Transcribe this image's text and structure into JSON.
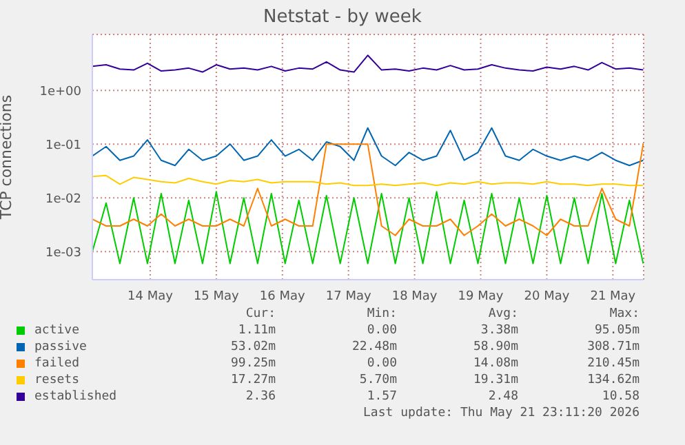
{
  "chart_data": {
    "type": "line",
    "title": "Netstat - by week",
    "ylabel": "TCP connections",
    "log": "y",
    "grid": true,
    "legend": "bottom",
    "marker": "none",
    "line_style": "solid",
    "xlim": [
      "2026-05-13T15:00",
      "2026-05-21T23:10"
    ],
    "xticks": [
      {
        "value": "2026-05-14T12:00",
        "label": "14 May"
      },
      {
        "value": "2026-05-15T12:00",
        "label": "15 May"
      },
      {
        "value": "2026-05-16T12:00",
        "label": "16 May"
      },
      {
        "value": "2026-05-17T12:00",
        "label": "17 May"
      },
      {
        "value": "2026-05-18T12:00",
        "label": "18 May"
      },
      {
        "value": "2026-05-19T12:00",
        "label": "19 May"
      },
      {
        "value": "2026-05-20T12:00",
        "label": "20 May"
      },
      {
        "value": "2026-05-21T12:00",
        "label": "21 May"
      }
    ],
    "ylim": [
      0.0003,
      11
    ],
    "yticks": [
      {
        "value": 0.001,
        "label": "1e-03"
      },
      {
        "value": 0.01,
        "label": "1e-02"
      },
      {
        "value": 0.1,
        "label": "1e-01"
      },
      {
        "value": 1,
        "label": "1e+00"
      }
    ],
    "x": [
      "2026-05-13T15:00",
      "2026-05-13T20:00",
      "2026-05-14T01:00",
      "2026-05-14T06:00",
      "2026-05-14T11:00",
      "2026-05-14T16:00",
      "2026-05-14T21:00",
      "2026-05-15T02:00",
      "2026-05-15T07:00",
      "2026-05-15T12:00",
      "2026-05-15T17:00",
      "2026-05-15T22:00",
      "2026-05-16T03:00",
      "2026-05-16T08:00",
      "2026-05-16T13:00",
      "2026-05-16T18:00",
      "2026-05-16T23:00",
      "2026-05-17T04:00",
      "2026-05-17T09:00",
      "2026-05-17T14:00",
      "2026-05-17T19:00",
      "2026-05-18T00:00",
      "2026-05-18T05:00",
      "2026-05-18T10:00",
      "2026-05-18T15:00",
      "2026-05-18T20:00",
      "2026-05-19T01:00",
      "2026-05-19T06:00",
      "2026-05-19T11:00",
      "2026-05-19T16:00",
      "2026-05-19T21:00",
      "2026-05-20T02:00",
      "2026-05-20T07:00",
      "2026-05-20T12:00",
      "2026-05-20T17:00",
      "2026-05-20T22:00",
      "2026-05-21T03:00",
      "2026-05-21T08:00",
      "2026-05-21T13:00",
      "2026-05-21T18:00",
      "2026-05-21T23:00"
    ],
    "series": [
      {
        "name": "active",
        "color": "#00cc00",
        "values": [
          0.001,
          0.008,
          0.0006,
          0.01,
          0.0006,
          0.012,
          0.0006,
          0.009,
          0.0006,
          0.013,
          0.0006,
          0.01,
          0.0006,
          0.012,
          0.0006,
          0.009,
          0.0006,
          0.011,
          0.0006,
          0.01,
          0.0006,
          0.012,
          0.0006,
          0.01,
          0.0006,
          0.013,
          0.0006,
          0.009,
          0.0006,
          0.012,
          0.0006,
          0.01,
          0.0006,
          0.011,
          0.0006,
          0.01,
          0.0006,
          0.012,
          0.0006,
          0.009,
          0.0006
        ]
      },
      {
        "name": "passive",
        "color": "#0066b3",
        "values": [
          0.06,
          0.09,
          0.05,
          0.06,
          0.12,
          0.05,
          0.04,
          0.08,
          0.05,
          0.06,
          0.1,
          0.05,
          0.06,
          0.12,
          0.06,
          0.08,
          0.05,
          0.11,
          0.09,
          0.05,
          0.2,
          0.06,
          0.04,
          0.07,
          0.05,
          0.06,
          0.18,
          0.05,
          0.07,
          0.2,
          0.06,
          0.05,
          0.08,
          0.06,
          0.05,
          0.06,
          0.05,
          0.07,
          0.05,
          0.04,
          0.05
        ]
      },
      {
        "name": "failed",
        "color": "#ff8000",
        "values": [
          0.004,
          0.003,
          0.003,
          0.004,
          0.003,
          0.005,
          0.003,
          0.004,
          0.003,
          0.003,
          0.004,
          0.003,
          0.015,
          0.003,
          0.004,
          0.003,
          0.003,
          0.1,
          0.1,
          0.1,
          0.1,
          0.003,
          0.002,
          0.004,
          0.003,
          0.003,
          0.004,
          0.002,
          0.003,
          0.005,
          0.003,
          0.004,
          0.003,
          0.002,
          0.004,
          0.003,
          0.003,
          0.015,
          0.004,
          0.003,
          0.1
        ]
      },
      {
        "name": "resets",
        "color": "#ffcc00",
        "values": [
          0.025,
          0.026,
          0.018,
          0.024,
          0.022,
          0.02,
          0.019,
          0.023,
          0.02,
          0.018,
          0.021,
          0.02,
          0.022,
          0.019,
          0.02,
          0.02,
          0.02,
          0.018,
          0.019,
          0.017,
          0.017,
          0.018,
          0.017,
          0.018,
          0.019,
          0.017,
          0.019,
          0.018,
          0.02,
          0.018,
          0.019,
          0.019,
          0.018,
          0.02,
          0.018,
          0.018,
          0.017,
          0.018,
          0.018,
          0.017,
          0.017
        ]
      },
      {
        "name": "established",
        "color": "#330099",
        "values": [
          2.8,
          3.0,
          2.5,
          2.4,
          3.2,
          2.3,
          2.4,
          2.6,
          2.2,
          3.0,
          2.5,
          2.6,
          2.4,
          2.8,
          2.3,
          2.6,
          2.5,
          3.4,
          2.4,
          2.2,
          4.5,
          2.4,
          2.5,
          2.3,
          2.6,
          2.4,
          2.9,
          2.4,
          2.5,
          3.0,
          2.6,
          2.4,
          2.3,
          2.7,
          2.5,
          2.8,
          2.4,
          3.3,
          2.5,
          2.6,
          2.4
        ]
      }
    ],
    "annotations": [
      "Cur:",
      "Min:",
      "Avg:",
      "Max:",
      "1.11m",
      "0.00",
      "3.38m",
      "95.05m",
      "53.02m",
      "22.48m",
      "58.90m",
      "308.71m",
      "99.25m",
      "0.00",
      "14.08m",
      "210.45m",
      "17.27m",
      "5.70m",
      "19.31m",
      "134.62m",
      "2.36",
      "1.57",
      "2.48",
      "10.58",
      "Last update: Thu May 21 23:11:20 2026"
    ]
  }
}
